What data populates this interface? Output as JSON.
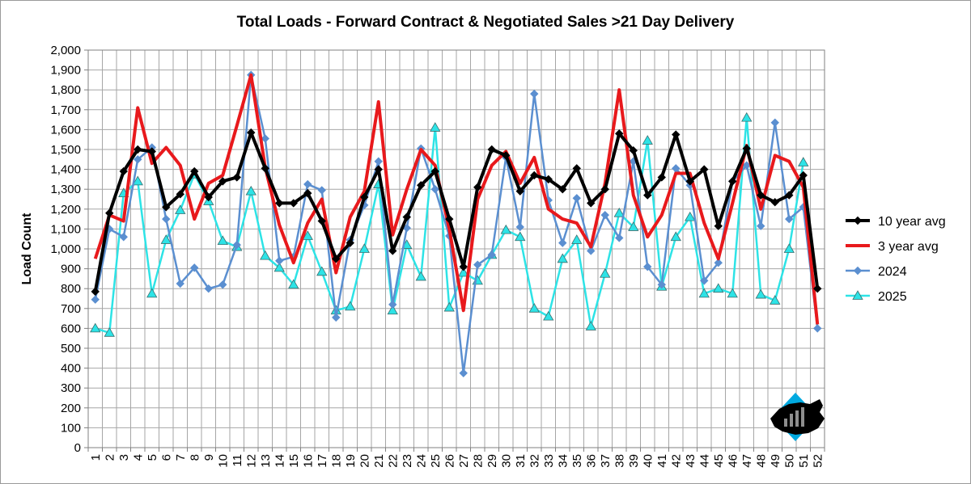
{
  "chart_data": {
    "type": "line",
    "title": "Total Loads - Forward Contract & Negotiated Sales >21 Day Delivery",
    "xlabel": "",
    "ylabel": "Load Count",
    "ylim": [
      0,
      2000
    ],
    "y_ticks": [
      0,
      100,
      200,
      300,
      400,
      500,
      600,
      700,
      800,
      900,
      1000,
      1100,
      1200,
      1300,
      1400,
      1500,
      1600,
      1700,
      1800,
      1900,
      2000
    ],
    "y_tick_labels": [
      "0",
      "100",
      "200",
      "300",
      "400",
      "500",
      "600",
      "700",
      "800",
      "900",
      "1,000",
      "1,100",
      "1,200",
      "1,300",
      "1,400",
      "1,500",
      "1,600",
      "1,700",
      "1,800",
      "1,900",
      "2,000"
    ],
    "categories": [
      "1",
      "2",
      "3",
      "4",
      "5",
      "6",
      "7",
      "8",
      "9",
      "10",
      "11",
      "12",
      "13",
      "14",
      "15",
      "16",
      "17",
      "18",
      "19",
      "20",
      "21",
      "22",
      "23",
      "24",
      "25",
      "26",
      "27",
      "28",
      "29",
      "30",
      "31",
      "32",
      "33",
      "34",
      "35",
      "36",
      "37",
      "38",
      "39",
      "40",
      "41",
      "42",
      "43",
      "44",
      "45",
      "46",
      "47",
      "48",
      "49",
      "50",
      "51",
      "52"
    ],
    "grid": true,
    "legend_position": "right",
    "series": [
      {
        "name": "10 year avg",
        "color": "#000000",
        "marker": "diamond",
        "values": [
          785,
          1180,
          1390,
          1500,
          1490,
          1210,
          1275,
          1390,
          1260,
          1340,
          1360,
          1585,
          1405,
          1230,
          1230,
          1280,
          1140,
          950,
          1030,
          1260,
          1400,
          990,
          1160,
          1320,
          1390,
          1150,
          910,
          1310,
          1500,
          1470,
          1290,
          1370,
          1350,
          1300,
          1405,
          1230,
          1300,
          1580,
          1495,
          1270,
          1360,
          1575,
          1340,
          1400,
          1115,
          1340,
          1505,
          1270,
          1235,
          1270,
          1370,
          800
        ]
      },
      {
        "name": "3 year avg",
        "color": "#e8191c",
        "marker": "none",
        "values": [
          950,
          1170,
          1140,
          1710,
          1430,
          1510,
          1420,
          1150,
          1330,
          1370,
          1620,
          1875,
          1410,
          1120,
          930,
          1130,
          1250,
          880,
          1160,
          1290,
          1740,
          1070,
          1300,
          1500,
          1420,
          1100,
          690,
          1250,
          1420,
          1490,
          1330,
          1460,
          1200,
          1150,
          1130,
          1010,
          1330,
          1800,
          1270,
          1060,
          1170,
          1380,
          1380,
          1130,
          950,
          1230,
          1520,
          1200,
          1470,
          1440,
          1310,
          620
        ]
      },
      {
        "name": "2024",
        "color": "#5b8fd0",
        "marker": "diamond",
        "values": [
          745,
          1100,
          1060,
          1450,
          1510,
          1150,
          825,
          905,
          800,
          820,
          1020,
          1875,
          1555,
          940,
          960,
          1325,
          1295,
          655,
          1045,
          1220,
          1440,
          720,
          1105,
          1505,
          1300,
          1065,
          375,
          920,
          970,
          1460,
          1110,
          1780,
          1245,
          1030,
          1255,
          990,
          1170,
          1055,
          1440,
          910,
          820,
          1405,
          1320,
          840,
          930,
          1340,
          1420,
          1115,
          1635,
          1150,
          1210,
          600
        ]
      },
      {
        "name": "2025",
        "color": "#2de3e6",
        "marker": "triangle",
        "values": [
          600,
          578,
          1280,
          1340,
          775,
          1045,
          1195,
          1375,
          1240,
          1040,
          1010,
          1290,
          965,
          905,
          820,
          1065,
          885,
          690,
          710,
          1000,
          1325,
          690,
          1020,
          860,
          1610,
          705,
          880,
          840,
          970,
          1095,
          1060,
          700,
          660,
          950,
          1045,
          610,
          875,
          1180,
          1110,
          1545,
          810,
          1060,
          1160,
          775,
          800,
          775,
          1660,
          770,
          740,
          1000,
          1435,
          null
        ]
      }
    ]
  },
  "logo": {
    "name": "brand-logo",
    "color_primary": "#000000",
    "color_secondary": "#00a9e0"
  }
}
